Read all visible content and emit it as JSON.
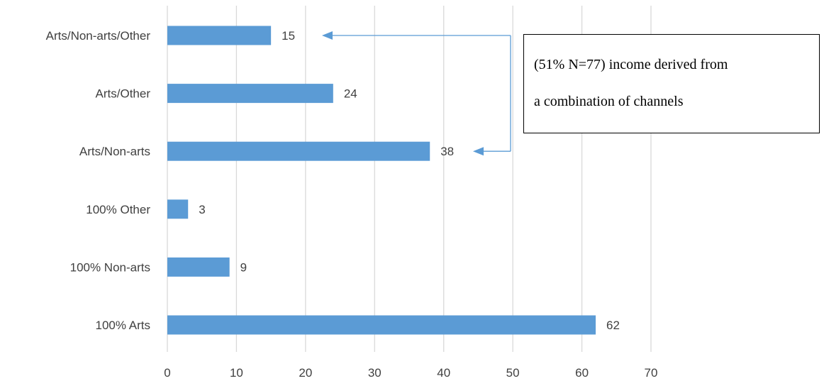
{
  "chart_data": {
    "type": "bar",
    "orientation": "horizontal",
    "categories": [
      "Arts/Non-arts/Other",
      "Arts/Other",
      "Arts/Non-arts",
      "100% Other",
      "100% Non-arts",
      "100% Arts"
    ],
    "values": [
      15,
      24,
      38,
      3,
      9,
      62
    ],
    "title": "",
    "xlabel": "",
    "ylabel": "",
    "xlim": [
      0,
      70
    ],
    "x_ticks": [
      0,
      10,
      20,
      30,
      40,
      50,
      60,
      70
    ],
    "grid": "vertical",
    "legend": "none",
    "bar_color": "#5b9bd5",
    "annotation": {
      "lines": [
        "(51% N=77) income derived from",
        "a combination of channels"
      ],
      "points_to": [
        "Arts/Non-arts/Other",
        "Arts/Non-arts"
      ]
    }
  },
  "colors": {
    "bar": "#5b9bd5",
    "arrow": "#5b9bd5",
    "grid": "#d9d9d9",
    "text": "#404040"
  }
}
